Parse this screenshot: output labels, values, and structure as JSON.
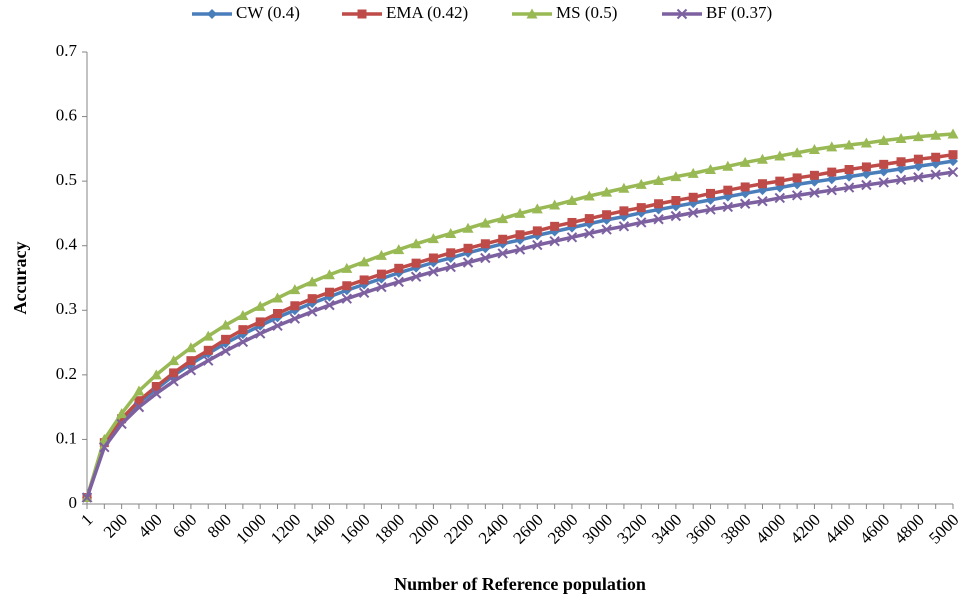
{
  "chart_data": {
    "type": "line",
    "y_label": "Accuracy",
    "x_label": "Number of Reference population",
    "categories": [
      "1",
      null,
      "200",
      null,
      "400",
      null,
      "600",
      null,
      "800",
      null,
      "1000",
      null,
      "1200",
      null,
      "1400",
      null,
      "1600",
      null,
      "1800",
      null,
      "2000",
      null,
      "2200",
      null,
      "2400",
      null,
      "2600",
      null,
      "2800",
      null,
      "3000",
      null,
      "3200",
      null,
      "3400",
      null,
      "3600",
      null,
      "3800",
      null,
      "4000",
      null,
      "4200",
      null,
      "4400",
      null,
      "4600",
      null,
      "4800",
      null,
      "5000"
    ],
    "series": [
      {
        "name": "CW (0.4)",
        "color": "#4a7ebb",
        "marker": "diamond",
        "values": [
          0.01,
          0.093,
          0.13,
          0.157,
          0.178,
          0.199,
          0.217,
          0.233,
          0.249,
          0.263,
          0.276,
          0.289,
          0.3,
          0.311,
          0.321,
          0.331,
          0.34,
          0.349,
          0.358,
          0.366,
          0.374,
          0.381,
          0.389,
          0.396,
          0.403,
          0.409,
          0.416,
          0.422,
          0.428,
          0.434,
          0.44,
          0.445,
          0.451,
          0.456,
          0.461,
          0.466,
          0.471,
          0.476,
          0.481,
          0.486,
          0.49,
          0.495,
          0.499,
          0.503,
          0.507,
          0.511,
          0.515,
          0.519,
          0.523,
          0.527,
          0.531
        ]
      },
      {
        "name": "EMA (0.42)",
        "color": "#be4b48",
        "marker": "square",
        "values": [
          0.01,
          0.095,
          0.132,
          0.16,
          0.182,
          0.203,
          0.222,
          0.238,
          0.255,
          0.27,
          0.282,
          0.295,
          0.307,
          0.318,
          0.328,
          0.338,
          0.347,
          0.356,
          0.365,
          0.373,
          0.381,
          0.389,
          0.396,
          0.403,
          0.41,
          0.417,
          0.423,
          0.43,
          0.436,
          0.442,
          0.448,
          0.454,
          0.459,
          0.465,
          0.47,
          0.475,
          0.481,
          0.486,
          0.491,
          0.496,
          0.5,
          0.505,
          0.509,
          0.514,
          0.518,
          0.522,
          0.526,
          0.53,
          0.534,
          0.537,
          0.541
        ]
      },
      {
        "name": "MS (0.5)",
        "color": "#98b954",
        "marker": "triangle",
        "values": [
          0.01,
          0.1,
          0.14,
          0.175,
          0.2,
          0.222,
          0.242,
          0.26,
          0.277,
          0.292,
          0.306,
          0.319,
          0.332,
          0.344,
          0.355,
          0.365,
          0.375,
          0.385,
          0.394,
          0.403,
          0.411,
          0.419,
          0.427,
          0.435,
          0.442,
          0.45,
          0.457,
          0.463,
          0.47,
          0.477,
          0.483,
          0.489,
          0.495,
          0.501,
          0.507,
          0.512,
          0.518,
          0.523,
          0.529,
          0.534,
          0.539,
          0.544,
          0.549,
          0.553,
          0.556,
          0.559,
          0.563,
          0.566,
          0.569,
          0.571,
          0.573
        ]
      },
      {
        "name": "BF (0.37)",
        "color": "#7d60a0",
        "marker": "x",
        "values": [
          0.01,
          0.088,
          0.124,
          0.15,
          0.171,
          0.19,
          0.207,
          0.222,
          0.237,
          0.251,
          0.264,
          0.276,
          0.287,
          0.298,
          0.308,
          0.318,
          0.327,
          0.336,
          0.344,
          0.352,
          0.36,
          0.367,
          0.374,
          0.381,
          0.388,
          0.394,
          0.401,
          0.407,
          0.413,
          0.419,
          0.425,
          0.43,
          0.436,
          0.441,
          0.446,
          0.451,
          0.456,
          0.46,
          0.465,
          0.469,
          0.474,
          0.478,
          0.482,
          0.486,
          0.49,
          0.494,
          0.498,
          0.502,
          0.506,
          0.51,
          0.514
        ]
      }
    ],
    "ylim": [
      0,
      0.7
    ],
    "yticks": [
      0,
      0.1,
      0.2,
      0.3,
      0.4,
      0.5,
      0.6,
      0.7
    ],
    "grid": false,
    "legend": "top"
  }
}
